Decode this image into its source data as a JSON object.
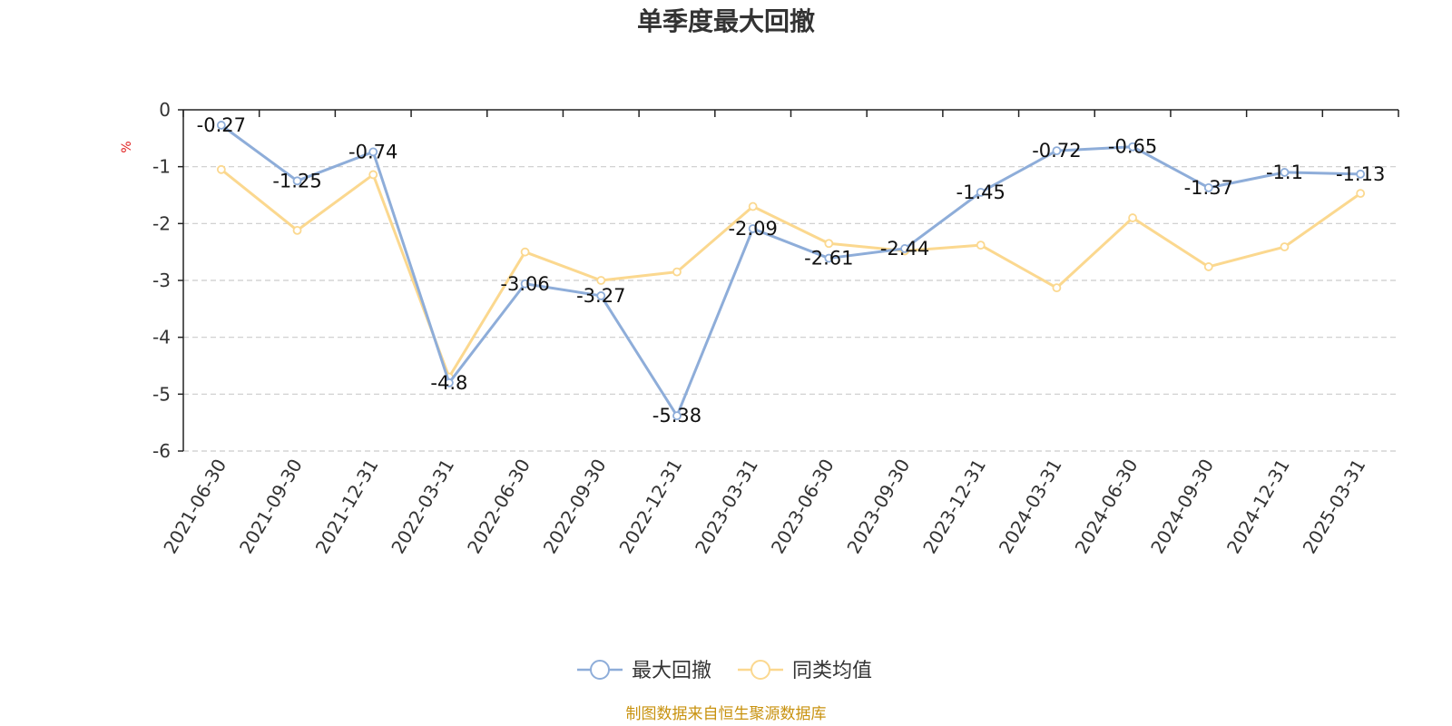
{
  "source": "制图数据来自恒生聚源数据库",
  "colors": {
    "series_main": "#8eadd9",
    "series_avg": "#fbd88f",
    "unit": "#e02020",
    "source": "#c8920f",
    "grid": "#cccccc",
    "axis": "#222222"
  },
  "chart_data": {
    "type": "line",
    "title": "单季度最大回撤",
    "ylabel": "%",
    "xlabel": "",
    "ylim": [
      -6,
      0
    ],
    "yticks": [
      0,
      -1,
      -2,
      -3,
      -4,
      -5,
      -6
    ],
    "grid": true,
    "legend_position": "bottom-center",
    "categories": [
      "2021-06-30",
      "2021-09-30",
      "2021-12-31",
      "2022-03-31",
      "2022-06-30",
      "2022-09-30",
      "2022-12-31",
      "2023-03-31",
      "2023-06-30",
      "2023-09-30",
      "2023-12-31",
      "2024-03-31",
      "2024-06-30",
      "2024-09-30",
      "2024-12-31",
      "2025-03-31"
    ],
    "series": [
      {
        "name": "最大回撤",
        "values": [
          -0.27,
          -1.25,
          -0.74,
          -4.8,
          -3.06,
          -3.27,
          -5.38,
          -2.09,
          -2.61,
          -2.44,
          -1.45,
          -0.72,
          -0.65,
          -1.37,
          -1.1,
          -1.13
        ],
        "data_labels": [
          "-0.27",
          "-1.25",
          "-0.74",
          "-4.8",
          "-3.06",
          "-3.27",
          "-5.38",
          "-2.09",
          "-2.61",
          "-2.44",
          "-1.45",
          "-0.72",
          "-0.65",
          "-1.37",
          "-1.1",
          "-1.13"
        ]
      },
      {
        "name": "同类均值",
        "values": [
          -1.05,
          -2.12,
          -1.14,
          -4.7,
          -2.5,
          -3.0,
          -2.85,
          -1.7,
          -2.35,
          -2.48,
          -2.38,
          -3.13,
          -1.9,
          -2.76,
          -2.41,
          -1.47
        ]
      }
    ]
  }
}
